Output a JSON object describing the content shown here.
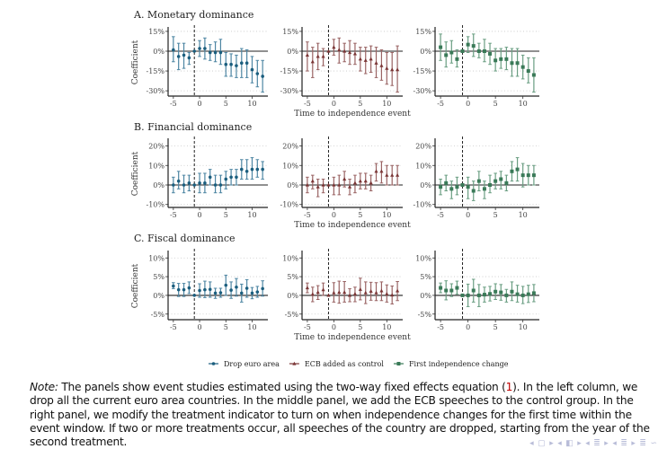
{
  "chart_data": [
    {
      "type": "scatter",
      "panel": "A. Monetary dominance",
      "title": "A. Monetary dominance",
      "ylabel": "Coefficient",
      "xlabel": "Time to independence event",
      "y_ticks": [
        15,
        0,
        -15,
        -30
      ],
      "y_tick_labels": [
        "15%",
        "0%",
        "-15%",
        "-30%"
      ],
      "ylim": [
        -34,
        17
      ],
      "x_ticks": [
        -5,
        0,
        5,
        10
      ],
      "xlim": [
        -6,
        13
      ],
      "reference_period": -1,
      "grid": "dotted-horizontal",
      "x": [
        -5,
        -4,
        -3,
        -2,
        -1,
        0,
        1,
        2,
        3,
        4,
        5,
        6,
        7,
        8,
        9,
        10,
        11,
        12
      ],
      "series": [
        {
          "name": "Drop euro area",
          "values": [
            1,
            -4,
            -3,
            -5,
            0,
            2,
            2,
            -1,
            -1,
            -1,
            -10,
            -10,
            -11,
            -9,
            -9,
            -14,
            -17,
            -19
          ],
          "lower": [
            -8,
            -14,
            -13,
            -10,
            0,
            -4,
            -6,
            -7,
            -8,
            -10,
            -19,
            -19,
            -20,
            -20,
            -20,
            -24,
            -27,
            -31
          ],
          "upper": [
            11,
            6,
            6,
            -1,
            0,
            8,
            10,
            5,
            7,
            9,
            -1,
            -2,
            -3,
            2,
            1,
            -4,
            -7,
            -7
          ]
        },
        {
          "name": "ECB added as control",
          "values": [
            -3,
            -8,
            -4,
            -4,
            0,
            3,
            1,
            0,
            -1,
            -2,
            -6,
            -7,
            -6,
            -9,
            -11,
            -13,
            -14,
            -14
          ],
          "lower": [
            -15,
            -20,
            -14,
            -11,
            0,
            -3,
            -9,
            -8,
            -10,
            -10,
            -15,
            -17,
            -16,
            -20,
            -22,
            -25,
            -26,
            -31
          ],
          "upper": [
            7,
            3,
            6,
            2,
            0,
            9,
            10,
            6,
            8,
            6,
            3,
            3,
            4,
            3,
            1,
            -1,
            -1,
            4
          ]
        },
        {
          "name": "First independence change",
          "values": [
            3,
            -3,
            -1,
            -6,
            0,
            5,
            4,
            0,
            0,
            -2,
            -7,
            -6,
            -6,
            -9,
            -9,
            -12,
            -15,
            -18
          ],
          "lower": [
            -7,
            -12,
            -9,
            -12,
            0,
            -1,
            -4,
            -5,
            -8,
            -10,
            -15,
            -13,
            -14,
            -19,
            -19,
            -21,
            -24,
            -31
          ],
          "upper": [
            13,
            7,
            8,
            1,
            0,
            11,
            13,
            6,
            9,
            6,
            2,
            2,
            3,
            2,
            2,
            -3,
            -5,
            -5
          ]
        }
      ]
    },
    {
      "type": "scatter",
      "panel": "B. Financial dominance",
      "title": "B. Financial dominance",
      "ylabel": "Coefficient",
      "xlabel": "Time to independence event",
      "y_ticks": [
        20,
        10,
        0,
        -10
      ],
      "y_tick_labels": [
        "20%",
        "10%",
        "0%",
        "-10%"
      ],
      "ylim": [
        -11.5,
        23
      ],
      "x_ticks": [
        -5,
        0,
        5,
        10
      ],
      "xlim": [
        -6,
        13
      ],
      "reference_period": -1,
      "grid": "dotted-horizontal",
      "x": [
        -5,
        -4,
        -3,
        -2,
        -1,
        0,
        1,
        2,
        3,
        4,
        5,
        6,
        7,
        8,
        9,
        10,
        11,
        12
      ],
      "series": [
        {
          "name": "Drop euro area",
          "values": [
            0,
            2,
            0,
            1,
            0,
            1,
            1,
            4,
            0,
            0,
            3,
            4,
            4,
            8,
            7,
            8,
            8,
            8
          ],
          "lower": [
            -4,
            -2,
            -4,
            -3,
            0,
            -4,
            -4,
            0,
            -4,
            -4,
            -2,
            0,
            0,
            3,
            3,
            3,
            4,
            3
          ],
          "upper": [
            4,
            7,
            5,
            5,
            0,
            6,
            6,
            8,
            5,
            5,
            7,
            8,
            8,
            13,
            13,
            14,
            13,
            12
          ]
        },
        {
          "name": "ECB added as control",
          "values": [
            0,
            2,
            -1,
            0,
            0,
            0,
            0,
            3,
            -1,
            1,
            2,
            2,
            1,
            7,
            7,
            5,
            5,
            5
          ],
          "lower": [
            -4,
            -2,
            -6,
            -4,
            0,
            -5,
            -5,
            -1,
            -5,
            -4,
            -2,
            -2,
            -3,
            2,
            1,
            0,
            0,
            0
          ],
          "upper": [
            4,
            5,
            3,
            3,
            0,
            4,
            5,
            7,
            3,
            5,
            6,
            6,
            5,
            11,
            12,
            10,
            10,
            10
          ]
        },
        {
          "name": "First independence change",
          "values": [
            -1,
            1,
            -2,
            -1,
            0,
            -1,
            -3,
            2,
            -2,
            0,
            2,
            3,
            1,
            7,
            8,
            5,
            5,
            5
          ],
          "lower": [
            -5,
            -3,
            -7,
            -5,
            0,
            -7,
            -8,
            -3,
            -7,
            -4,
            -2,
            -2,
            -3,
            2,
            2,
            -1,
            0,
            0
          ],
          "upper": [
            3,
            5,
            2,
            4,
            0,
            4,
            2,
            7,
            2,
            5,
            6,
            7,
            5,
            12,
            14,
            11,
            10,
            10
          ]
        }
      ]
    },
    {
      "type": "scatter",
      "panel": "C. Fiscal dominance",
      "title": "C. Fiscal dominance",
      "ylabel": "Coefficient",
      "xlabel": "Time to independence event",
      "y_ticks": [
        10,
        5,
        0,
        -5
      ],
      "y_tick_labels": [
        "10%",
        "5%",
        "0%",
        "-5%"
      ],
      "ylim": [
        -6.5,
        11.5
      ],
      "x_ticks": [
        -5,
        0,
        5,
        10
      ],
      "xlim": [
        -6,
        13
      ],
      "reference_period": -1,
      "grid": "dotted-horizontal",
      "x": [
        -5,
        -4,
        -3,
        -2,
        -1,
        0,
        1,
        2,
        3,
        4,
        5,
        6,
        7,
        8,
        9,
        10,
        11,
        12
      ],
      "series": [
        {
          "name": "Drop euro area",
          "values": [
            2.5,
            1.5,
            1.5,
            2,
            0,
            1.3,
            1.5,
            1.6,
            0.6,
            0.7,
            2.7,
            1.4,
            2.2,
            0.6,
            1.9,
            0.6,
            0.9,
            1.8
          ],
          "lower": [
            1.8,
            -0.3,
            -0.3,
            0.5,
            0,
            -0.5,
            -0.6,
            -0.5,
            -0.8,
            -0.5,
            0,
            -0.8,
            -0.2,
            -1.8,
            -0.5,
            -0.9,
            -0.5,
            -0.2
          ],
          "upper": [
            3.4,
            3.2,
            3.2,
            3.6,
            0,
            3.1,
            3.8,
            3.6,
            1.9,
            1.9,
            5.4,
            3.6,
            4.5,
            3.0,
            4.2,
            2.1,
            2.4,
            3.9
          ]
        },
        {
          "name": "ECB added as control",
          "values": [
            2,
            0.3,
            0.8,
            1.5,
            0,
            0.7,
            0.8,
            0.8,
            0,
            0.4,
            1.6,
            0.7,
            1.1,
            0.7,
            1.2,
            0.4,
            0.1,
            1.2
          ],
          "lower": [
            0.7,
            -1.7,
            -1.1,
            0,
            0,
            -1.8,
            -2.1,
            -1.8,
            -1.7,
            -1.7,
            -1.2,
            -2.2,
            -1.3,
            -1.4,
            -1.4,
            -1.8,
            -2.3,
            -1.4
          ],
          "upper": [
            3.3,
            2.2,
            2.6,
            3.3,
            0,
            3.4,
            3.8,
            3.7,
            1.8,
            2.2,
            4.6,
            3.6,
            3.5,
            3.4,
            3.6,
            2.8,
            2.5,
            3.7
          ]
        },
        {
          "name": "First independence change",
          "values": [
            2,
            1.3,
            1.3,
            2,
            0,
            0,
            1.3,
            0,
            0.2,
            0.4,
            1,
            0.8,
            0,
            1,
            0.3,
            0,
            0.3,
            0.6
          ],
          "lower": [
            0.7,
            -1.2,
            -0.3,
            0.3,
            0,
            -3,
            -1.8,
            -3,
            -1.8,
            -1.5,
            -1.1,
            -1.3,
            -1.8,
            -1.4,
            -1.8,
            -2.2,
            -1.9,
            -1.7
          ],
          "upper": [
            3.3,
            3.9,
            3.1,
            3.8,
            0,
            3,
            4.3,
            2.9,
            2.2,
            2.4,
            3.1,
            2.9,
            1.6,
            3.6,
            2.7,
            2.4,
            2.7,
            2.9
          ]
        }
      ]
    }
  ],
  "legend": {
    "placement": "bottom",
    "items": [
      {
        "label": "Drop euro area",
        "marker": "circle",
        "color": "#1b5e7e"
      },
      {
        "label": "ECB added as control",
        "marker": "triangle",
        "color": "#7a3535"
      },
      {
        "label": "First independence change",
        "marker": "square",
        "color": "#3a7a58"
      }
    ]
  },
  "colors": {
    "series": [
      "#1b5e7e",
      "#7a3535",
      "#3a7a58"
    ],
    "errorbars": [
      "#4e86a3",
      "#9a6464",
      "#6a9e82"
    ],
    "axis": "#222222",
    "grid": "#c8c8c8"
  },
  "note": {
    "label": "Note:",
    "text_before_ref": " The panels show event studies estimated using the two-way fixed effects equation (",
    "ref": "1",
    "text_after_ref": "). In the left column, we drop all the current euro area countries. In the middle panel, we add the ECB speeches to the control group. In the right panel, we modify the treatment indicator to turn on when independence changes for the first time within the event window. If two or more treatments occur, all speeches of the country are dropped, starting from the year of the second treatment."
  },
  "navigation": {
    "symbols": "◂ ▢ ▸ ◂ ◧ ▸ ◂ ≣ ▸ ◂ ≣ ▸ ≣ ∽"
  }
}
